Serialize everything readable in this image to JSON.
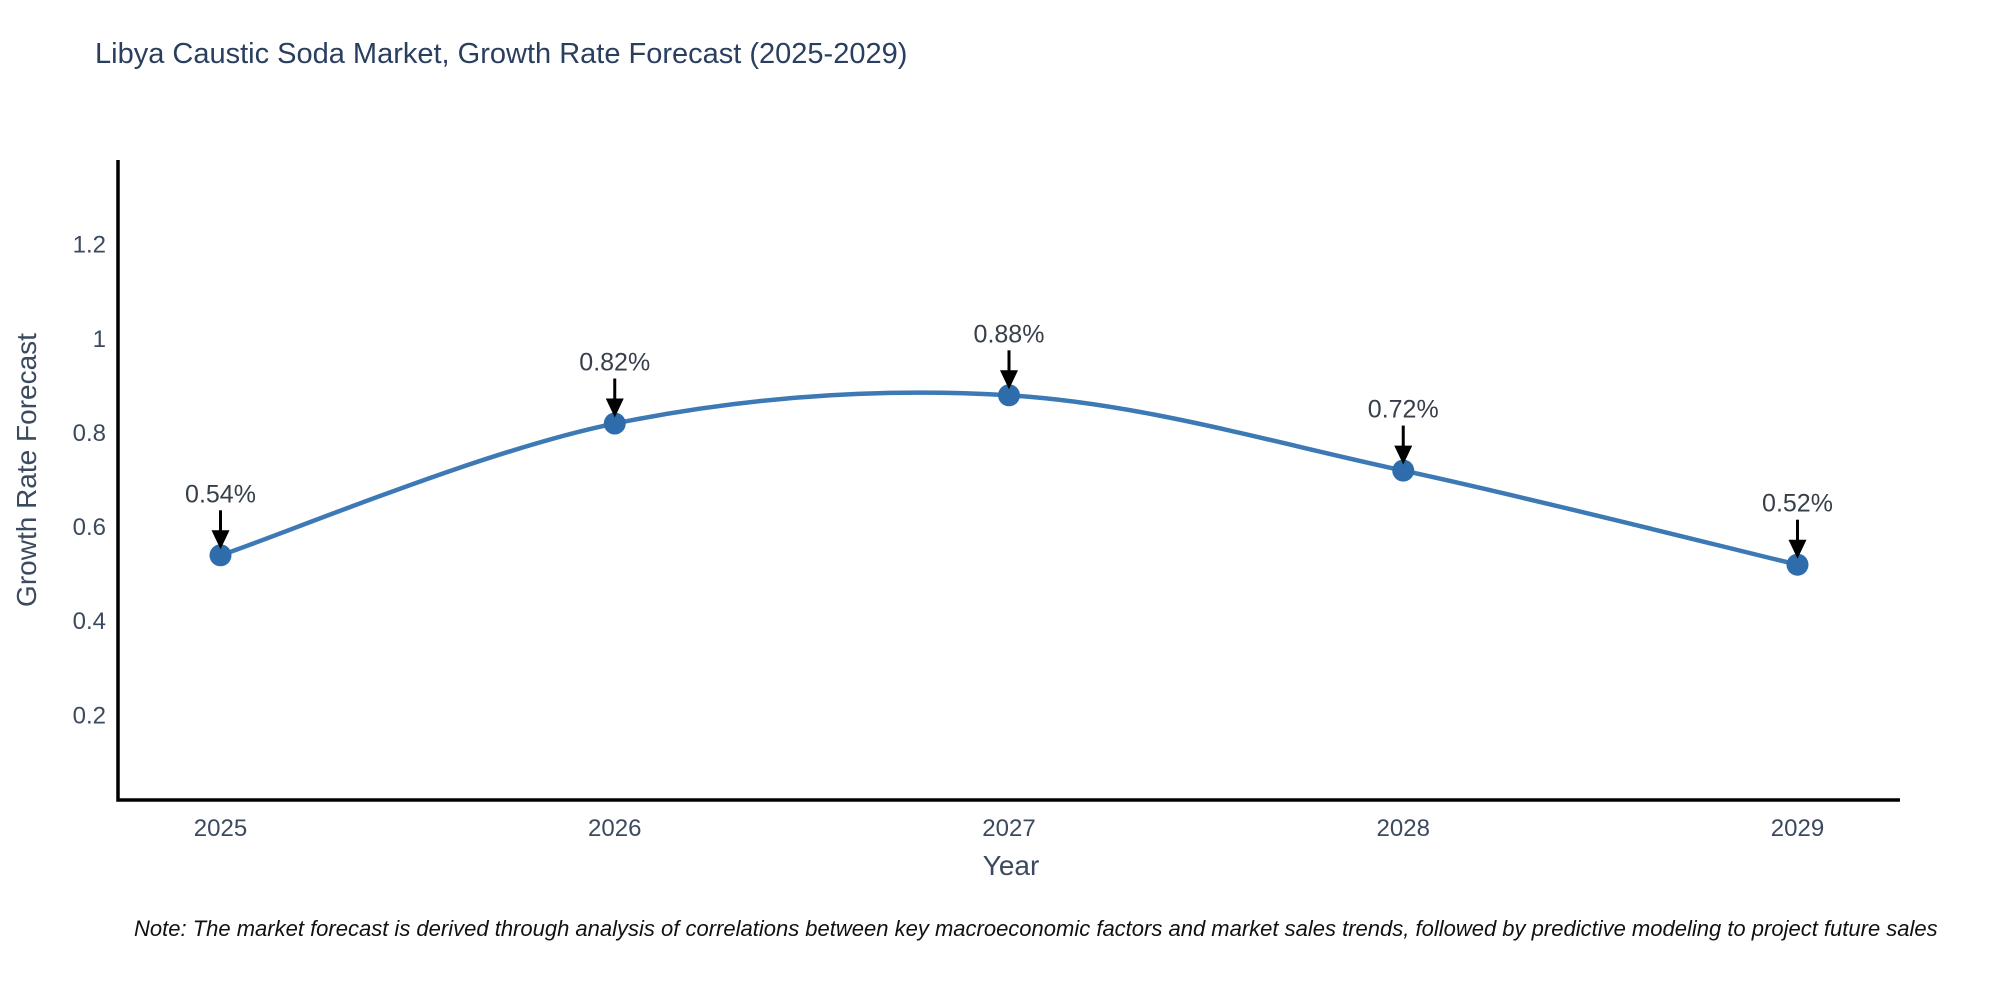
{
  "chart_data": {
    "type": "line",
    "title": "Libya Caustic Soda Market, Growth Rate Forecast (2025-2029)",
    "xlabel": "Year",
    "ylabel": "Growth Rate Forecast",
    "categories": [
      "2025",
      "2026",
      "2027",
      "2028",
      "2029"
    ],
    "series": [
      {
        "name": "Growth Rate Forecast",
        "values": [
          0.54,
          0.82,
          0.88,
          0.72,
          0.52
        ]
      }
    ],
    "point_labels": [
      "0.54%",
      "0.82%",
      "0.88%",
      "0.72%",
      "0.52%"
    ],
    "ytick_values": [
      0.2,
      0.4,
      0.6,
      0.8,
      1.0,
      1.2
    ],
    "ytick_labels": [
      "0.2",
      "0.4",
      "0.6",
      "0.8",
      "1",
      "1.2"
    ],
    "ylim": [
      0.02,
      1.38
    ],
    "grid": false,
    "legend_position": "none",
    "line_shape": "spline",
    "annotation_style": "down-arrow",
    "colors": {
      "line": "#3d79b4",
      "marker": "#2f6cab",
      "spine": "#000000",
      "arrow": "#000000",
      "title_text": "#2a3f5f",
      "axis_text": "#3b4a5f",
      "annotation_text": "#37404a",
      "note_text": "#111111",
      "background": "#ffffff"
    },
    "note": "Note: The market forecast is derived through analysis of correlations between key macroeconomic factors and market sales trends, followed by predictive modeling to project future sales"
  }
}
